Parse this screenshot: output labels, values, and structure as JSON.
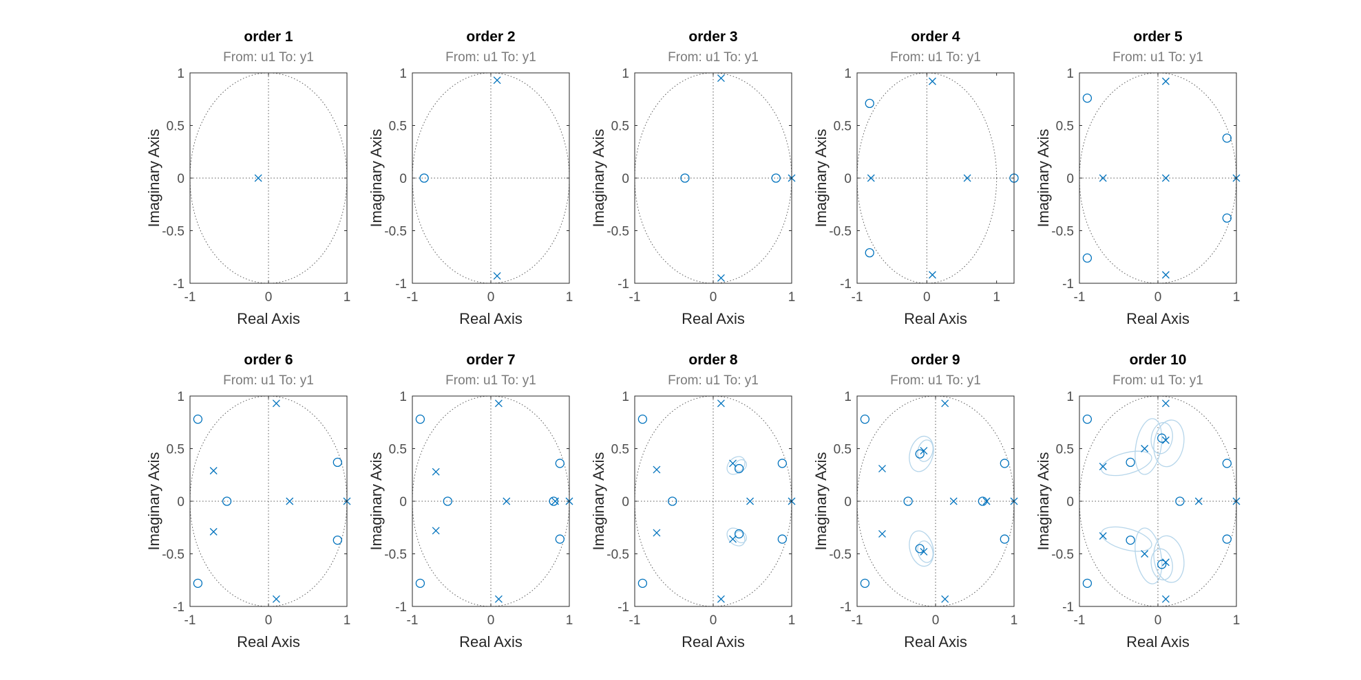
{
  "colors": {
    "marker": "#0072bd",
    "ellipse": "#b5d5ea",
    "grid": "#555555",
    "frame": "#262626",
    "tick_text": "#4d4d4d"
  },
  "chart_data": [
    {
      "type": "scatter",
      "title": "order 1",
      "subtitle": "From: u1  To: y1",
      "xlabel": "Real Axis",
      "ylabel": "Imaginary Axis",
      "xlim": [
        -1,
        1
      ],
      "ylim": [
        -1,
        1
      ],
      "xticks": [
        -1,
        0,
        1
      ],
      "yticks": [
        -1,
        -0.5,
        0,
        0.5,
        1
      ],
      "poles": [
        [
          -0.13,
          0
        ]
      ],
      "zeros": [],
      "ellipses": []
    },
    {
      "type": "scatter",
      "title": "order 2",
      "subtitle": "From: u1  To: y1",
      "xlabel": "Real Axis",
      "ylabel": "Imaginary Axis",
      "xlim": [
        -1,
        1
      ],
      "ylim": [
        -1,
        1
      ],
      "xticks": [
        -1,
        0,
        1
      ],
      "yticks": [
        -1,
        -0.5,
        0,
        0.5,
        1
      ],
      "poles": [
        [
          0.08,
          0.93
        ],
        [
          0.08,
          -0.93
        ]
      ],
      "zeros": [
        [
          -0.85,
          0
        ]
      ],
      "ellipses": []
    },
    {
      "type": "scatter",
      "title": "order 3",
      "subtitle": "From: u1  To: y1",
      "xlabel": "Real Axis",
      "ylabel": "Imaginary Axis",
      "xlim": [
        -1,
        1
      ],
      "ylim": [
        -1,
        1
      ],
      "xticks": [
        -1,
        0,
        1
      ],
      "yticks": [
        -1,
        -0.5,
        0,
        0.5,
        1
      ],
      "poles": [
        [
          0.1,
          0.95
        ],
        [
          0.1,
          -0.95
        ],
        [
          1.0,
          0
        ]
      ],
      "zeros": [
        [
          -0.36,
          0
        ],
        [
          0.8,
          0
        ]
      ],
      "ellipses": []
    },
    {
      "type": "scatter",
      "title": "order 4",
      "subtitle": "From: u1  To: y1",
      "xlabel": "Real Axis",
      "ylabel": "Imaginary Axis",
      "xlim": [
        -1,
        1.25
      ],
      "ylim": [
        -1,
        1
      ],
      "xticks": [
        -1,
        0,
        1
      ],
      "yticks": [
        -1,
        -0.5,
        0,
        0.5,
        1
      ],
      "poles": [
        [
          0.08,
          0.92
        ],
        [
          0.08,
          -0.92
        ],
        [
          -0.8,
          0
        ],
        [
          0.58,
          0
        ]
      ],
      "zeros": [
        [
          -0.82,
          0.71
        ],
        [
          -0.82,
          -0.71
        ],
        [
          1.25,
          0
        ]
      ],
      "ellipses": []
    },
    {
      "type": "scatter",
      "title": "order 5",
      "subtitle": "From: u1  To: y1",
      "xlabel": "Real Axis",
      "ylabel": "Imaginary Axis",
      "xlim": [
        -1,
        1
      ],
      "ylim": [
        -1,
        1
      ],
      "xticks": [
        -1,
        0,
        1
      ],
      "yticks": [
        -1,
        -0.5,
        0,
        0.5,
        1
      ],
      "poles": [
        [
          0.1,
          0.92
        ],
        [
          0.1,
          -0.92
        ],
        [
          -0.7,
          0
        ],
        [
          0.1,
          0
        ],
        [
          1.0,
          0
        ]
      ],
      "zeros": [
        [
          -0.9,
          0.76
        ],
        [
          -0.9,
          -0.76
        ],
        [
          0.88,
          0.38
        ],
        [
          0.88,
          -0.38
        ]
      ],
      "ellipses": []
    },
    {
      "type": "scatter",
      "title": "order 6",
      "subtitle": "From: u1  To: y1",
      "xlabel": "Real Axis",
      "ylabel": "Imaginary Axis",
      "xlim": [
        -1,
        1
      ],
      "ylim": [
        -1,
        1
      ],
      "xticks": [
        -1,
        0,
        1
      ],
      "yticks": [
        -1,
        -0.5,
        0,
        0.5,
        1
      ],
      "poles": [
        [
          0.1,
          0.93
        ],
        [
          0.1,
          -0.93
        ],
        [
          -0.7,
          0.29
        ],
        [
          -0.7,
          -0.29
        ],
        [
          0.27,
          0
        ],
        [
          1.0,
          0
        ]
      ],
      "zeros": [
        [
          -0.9,
          0.78
        ],
        [
          -0.9,
          -0.78
        ],
        [
          -0.53,
          0
        ],
        [
          0.88,
          0.37
        ],
        [
          0.88,
          -0.37
        ]
      ],
      "ellipses": []
    },
    {
      "type": "scatter",
      "title": "order 7",
      "subtitle": "From: u1  To: y1",
      "xlabel": "Real Axis",
      "ylabel": "Imaginary Axis",
      "xlim": [
        -1,
        1
      ],
      "ylim": [
        -1,
        1
      ],
      "xticks": [
        -1,
        0,
        1
      ],
      "yticks": [
        -1,
        -0.5,
        0,
        0.5,
        1
      ],
      "poles": [
        [
          0.1,
          0.93
        ],
        [
          0.1,
          -0.93
        ],
        [
          -0.7,
          0.28
        ],
        [
          -0.7,
          -0.28
        ],
        [
          0.2,
          0
        ],
        [
          0.82,
          0
        ],
        [
          1.0,
          0
        ]
      ],
      "zeros": [
        [
          -0.9,
          0.78
        ],
        [
          -0.9,
          -0.78
        ],
        [
          -0.55,
          0
        ],
        [
          0.8,
          0
        ],
        [
          0.88,
          0.36
        ],
        [
          0.88,
          -0.36
        ]
      ],
      "ellipses": []
    },
    {
      "type": "scatter",
      "title": "order 8",
      "subtitle": "From: u1  To: y1",
      "xlabel": "Real Axis",
      "ylabel": "Imaginary Axis",
      "xlim": [
        -1,
        1
      ],
      "ylim": [
        -1,
        1
      ],
      "xticks": [
        -1,
        0,
        1
      ],
      "yticks": [
        -1,
        -0.5,
        0,
        0.5,
        1
      ],
      "poles": [
        [
          0.1,
          0.93
        ],
        [
          0.1,
          -0.93
        ],
        [
          -0.72,
          0.3
        ],
        [
          -0.72,
          -0.3
        ],
        [
          0.47,
          0
        ],
        [
          1.0,
          0
        ],
        [
          0.25,
          0.36
        ],
        [
          0.25,
          -0.36
        ]
      ],
      "zeros": [
        [
          -0.9,
          0.78
        ],
        [
          -0.9,
          -0.78
        ],
        [
          -0.52,
          0
        ],
        [
          0.88,
          0.36
        ],
        [
          0.88,
          -0.36
        ],
        [
          0.33,
          0.31
        ],
        [
          0.33,
          -0.31
        ]
      ],
      "ellipses": [
        {
          "cx": 0.29,
          "cy": 0.34,
          "rx": 0.13,
          "ry": 0.07,
          "angle": -45
        },
        {
          "cx": 0.35,
          "cy": 0.34,
          "rx": 0.08,
          "ry": 0.05,
          "angle": -45
        },
        {
          "cx": 0.29,
          "cy": -0.34,
          "rx": 0.13,
          "ry": 0.07,
          "angle": 45
        },
        {
          "cx": 0.35,
          "cy": -0.34,
          "rx": 0.08,
          "ry": 0.05,
          "angle": 45
        }
      ]
    },
    {
      "type": "scatter",
      "title": "order 9",
      "subtitle": "From: u1  To: y1",
      "xlabel": "Real Axis",
      "ylabel": "Imaginary Axis",
      "xlim": [
        -1,
        1
      ],
      "ylim": [
        -1,
        1
      ],
      "xticks": [
        -1,
        0,
        1
      ],
      "yticks": [
        -1,
        -0.5,
        0,
        0.5,
        1
      ],
      "poles": [
        [
          0.12,
          0.93
        ],
        [
          0.12,
          -0.93
        ],
        [
          -0.68,
          0.31
        ],
        [
          -0.68,
          -0.31
        ],
        [
          0.23,
          0
        ],
        [
          0.65,
          0
        ],
        [
          1.0,
          0
        ],
        [
          -0.15,
          0.48
        ],
        [
          -0.15,
          -0.48
        ]
      ],
      "zeros": [
        [
          -0.9,
          0.78
        ],
        [
          -0.9,
          -0.78
        ],
        [
          -0.35,
          0
        ],
        [
          0.6,
          0
        ],
        [
          0.88,
          0.36
        ],
        [
          0.88,
          -0.36
        ],
        [
          -0.2,
          0.45
        ],
        [
          -0.2,
          -0.45
        ]
      ],
      "ellipses": [
        {
          "cx": -0.18,
          "cy": 0.45,
          "rx": 0.23,
          "ry": 0.11,
          "angle": -75
        },
        {
          "cx": -0.13,
          "cy": 0.48,
          "rx": 0.14,
          "ry": 0.07,
          "angle": -75
        },
        {
          "cx": -0.18,
          "cy": -0.45,
          "rx": 0.23,
          "ry": 0.11,
          "angle": 75
        },
        {
          "cx": -0.13,
          "cy": -0.48,
          "rx": 0.14,
          "ry": 0.07,
          "angle": 75
        }
      ]
    },
    {
      "type": "scatter",
      "title": "order 10",
      "subtitle": "From: u1  To: y1",
      "xlabel": "Real Axis",
      "ylabel": "Imaginary Axis",
      "xlim": [
        -1,
        1
      ],
      "ylim": [
        -1,
        1
      ],
      "xticks": [
        -1,
        0,
        1
      ],
      "yticks": [
        -1,
        -0.5,
        0,
        0.5,
        1
      ],
      "poles": [
        [
          0.1,
          0.93
        ],
        [
          0.1,
          -0.93
        ],
        [
          -0.7,
          0.33
        ],
        [
          -0.7,
          -0.33
        ],
        [
          -0.17,
          0.5
        ],
        [
          -0.17,
          -0.5
        ],
        [
          0.52,
          0
        ],
        [
          1.0,
          0
        ],
        [
          0.1,
          0.58
        ],
        [
          0.1,
          -0.58
        ]
      ],
      "zeros": [
        [
          -0.9,
          0.78
        ],
        [
          -0.9,
          -0.78
        ],
        [
          -0.35,
          0.37
        ],
        [
          -0.35,
          -0.37
        ],
        [
          0.28,
          0
        ],
        [
          0.88,
          0.36
        ],
        [
          0.88,
          -0.36
        ],
        [
          0.05,
          0.6
        ],
        [
          0.05,
          -0.6
        ]
      ],
      "ellipses": [
        {
          "cx": -0.4,
          "cy": 0.36,
          "rx": 0.33,
          "ry": 0.1,
          "angle": -15
        },
        {
          "cx": -0.12,
          "cy": 0.52,
          "rx": 0.36,
          "ry": 0.12,
          "angle": -80
        },
        {
          "cx": 0.14,
          "cy": 0.55,
          "rx": 0.3,
          "ry": 0.14,
          "angle": -80
        },
        {
          "cx": 0.05,
          "cy": 0.6,
          "rx": 0.2,
          "ry": 0.1,
          "angle": -80
        },
        {
          "cx": -0.4,
          "cy": -0.36,
          "rx": 0.33,
          "ry": 0.1,
          "angle": 15
        },
        {
          "cx": -0.12,
          "cy": -0.52,
          "rx": 0.36,
          "ry": 0.12,
          "angle": 80
        },
        {
          "cx": 0.14,
          "cy": -0.55,
          "rx": 0.3,
          "ry": 0.14,
          "angle": 80
        },
        {
          "cx": 0.05,
          "cy": -0.6,
          "rx": 0.2,
          "ry": 0.1,
          "angle": 80
        }
      ]
    }
  ]
}
